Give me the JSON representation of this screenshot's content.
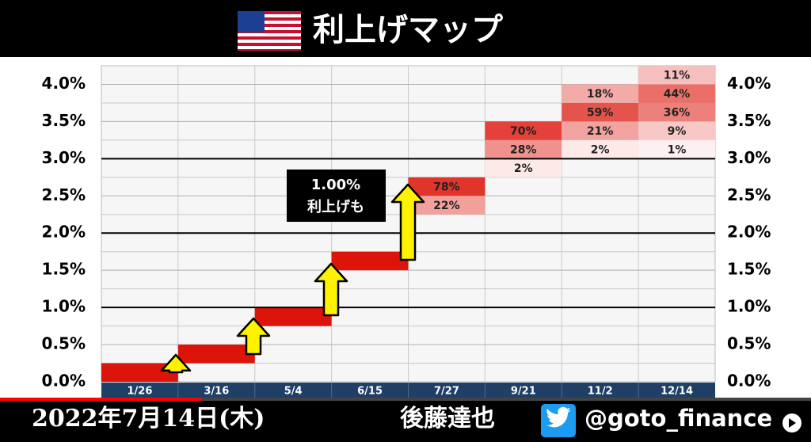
{
  "chart_data": {
    "type": "rate_map",
    "title": "利上げマップ",
    "categories": [
      "1/26",
      "3/16",
      "5/4",
      "6/15",
      "7/27",
      "9/21",
      "11/2",
      "12/14"
    ],
    "ylim": [
      0,
      4.25
    ],
    "yticks": [
      {
        "value": 0,
        "label": "0.0%"
      },
      {
        "value": 0.5,
        "label": "0.5%"
      },
      {
        "value": 1,
        "label": "1.0%"
      },
      {
        "value": 1.5,
        "label": "1.5%"
      },
      {
        "value": 2,
        "label": "2.0%"
      },
      {
        "value": 2.5,
        "label": "2.5%"
      },
      {
        "value": 3,
        "label": "3.0%"
      },
      {
        "value": 3.5,
        "label": "3.5%"
      },
      {
        "value": 4,
        "label": "4.0%"
      }
    ],
    "minor_yticks": [
      0.25,
      0.75,
      1.25,
      1.75,
      2.25,
      2.75,
      3.25,
      3.75
    ],
    "major_lines": [
      1,
      2,
      3
    ],
    "color": "#dc140a",
    "meetings": [
      {
        "cells": [
          {
            "range": [
              0,
              0.25
            ],
            "value": 100
          }
        ]
      },
      {
        "cells": [
          {
            "range": [
              0.25,
              0.5
            ],
            "value": 100
          }
        ]
      },
      {
        "cells": [
          {
            "range": [
              0.75,
              1
            ],
            "value": 100
          }
        ]
      },
      {
        "cells": [
          {
            "range": [
              1.5,
              1.75
            ],
            "value": 100
          }
        ]
      },
      {
        "cells": [
          {
            "range": [
              2.5,
              2.75
            ],
            "value": 78,
            "label": "78%"
          },
          {
            "range": [
              2.25,
              2.5
            ],
            "value": 22,
            "label": "22%"
          }
        ]
      },
      {
        "cells": [
          {
            "range": [
              3.25,
              3.5
            ],
            "value": 70,
            "label": "70%"
          },
          {
            "range": [
              3,
              3.25
            ],
            "value": 28,
            "label": "28%"
          },
          {
            "range": [
              2.75,
              3
            ],
            "value": 2,
            "label": "2%"
          }
        ]
      },
      {
        "cells": [
          {
            "range": [
              3.75,
              4
            ],
            "value": 18,
            "label": "18%"
          },
          {
            "range": [
              3.5,
              3.75
            ],
            "value": 59,
            "label": "59%"
          },
          {
            "range": [
              3.25,
              3.5
            ],
            "value": 21,
            "label": "21%"
          },
          {
            "range": [
              3,
              3.25
            ],
            "value": 2,
            "label": "2%"
          }
        ]
      },
      {
        "cells": [
          {
            "range": [
              4,
              4.25
            ],
            "value": 11,
            "label": "11%"
          },
          {
            "range": [
              3.75,
              4
            ],
            "value": 44,
            "label": "44%"
          },
          {
            "range": [
              3.5,
              3.75
            ],
            "value": 36,
            "label": "36%"
          },
          {
            "range": [
              3.25,
              3.5
            ],
            "value": 9,
            "label": "9%"
          },
          {
            "range": [
              3,
              3.25
            ],
            "value": 1,
            "label": "1%"
          }
        ]
      }
    ],
    "annotation": [
      "1.00%",
      "利上げも"
    ]
  },
  "footer": {
    "date": "2022年7月14日(木)",
    "name": "後藤達也",
    "handle": "@goto_finance"
  }
}
